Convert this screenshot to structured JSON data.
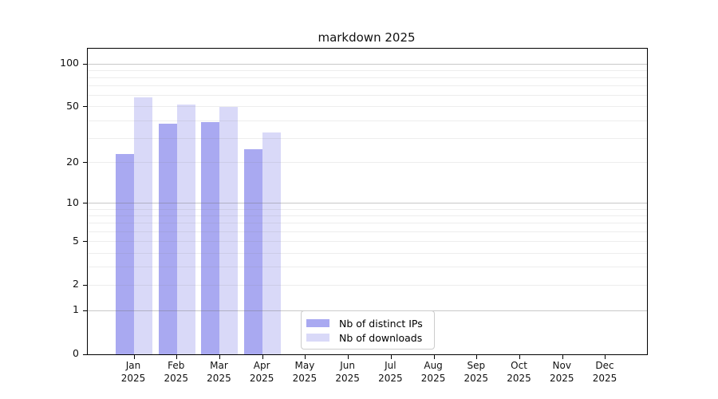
{
  "chart_data": {
    "type": "bar",
    "title": "markdown 2025",
    "categories": [
      "Jan",
      "Feb",
      "Mar",
      "Apr",
      "May",
      "Jun",
      "Jul",
      "Aug",
      "Sep",
      "Oct",
      "Nov",
      "Dec"
    ],
    "year_label": "2025",
    "series": [
      {
        "name": "Nb of distinct IPs",
        "color": "#a9a9f1",
        "values": [
          23,
          38,
          39,
          25,
          0,
          0,
          0,
          0,
          0,
          0,
          0,
          0
        ]
      },
      {
        "name": "Nb of downloads",
        "color": "#d9d9f8",
        "values": [
          58,
          52,
          50,
          33,
          0,
          0,
          0,
          0,
          0,
          0,
          0,
          0
        ]
      }
    ],
    "y_axis": {
      "scale": "symlog",
      "ticks": [
        0,
        1,
        2,
        5,
        10,
        20,
        50,
        100
      ],
      "range": [
        0,
        127
      ]
    },
    "grid": {
      "major": [
        1,
        10,
        100
      ],
      "minor": [
        2,
        3,
        4,
        5,
        6,
        7,
        8,
        9,
        20,
        30,
        40,
        50,
        60,
        70,
        80,
        90
      ]
    },
    "legend": {
      "position": "inside-bottom-center"
    }
  }
}
